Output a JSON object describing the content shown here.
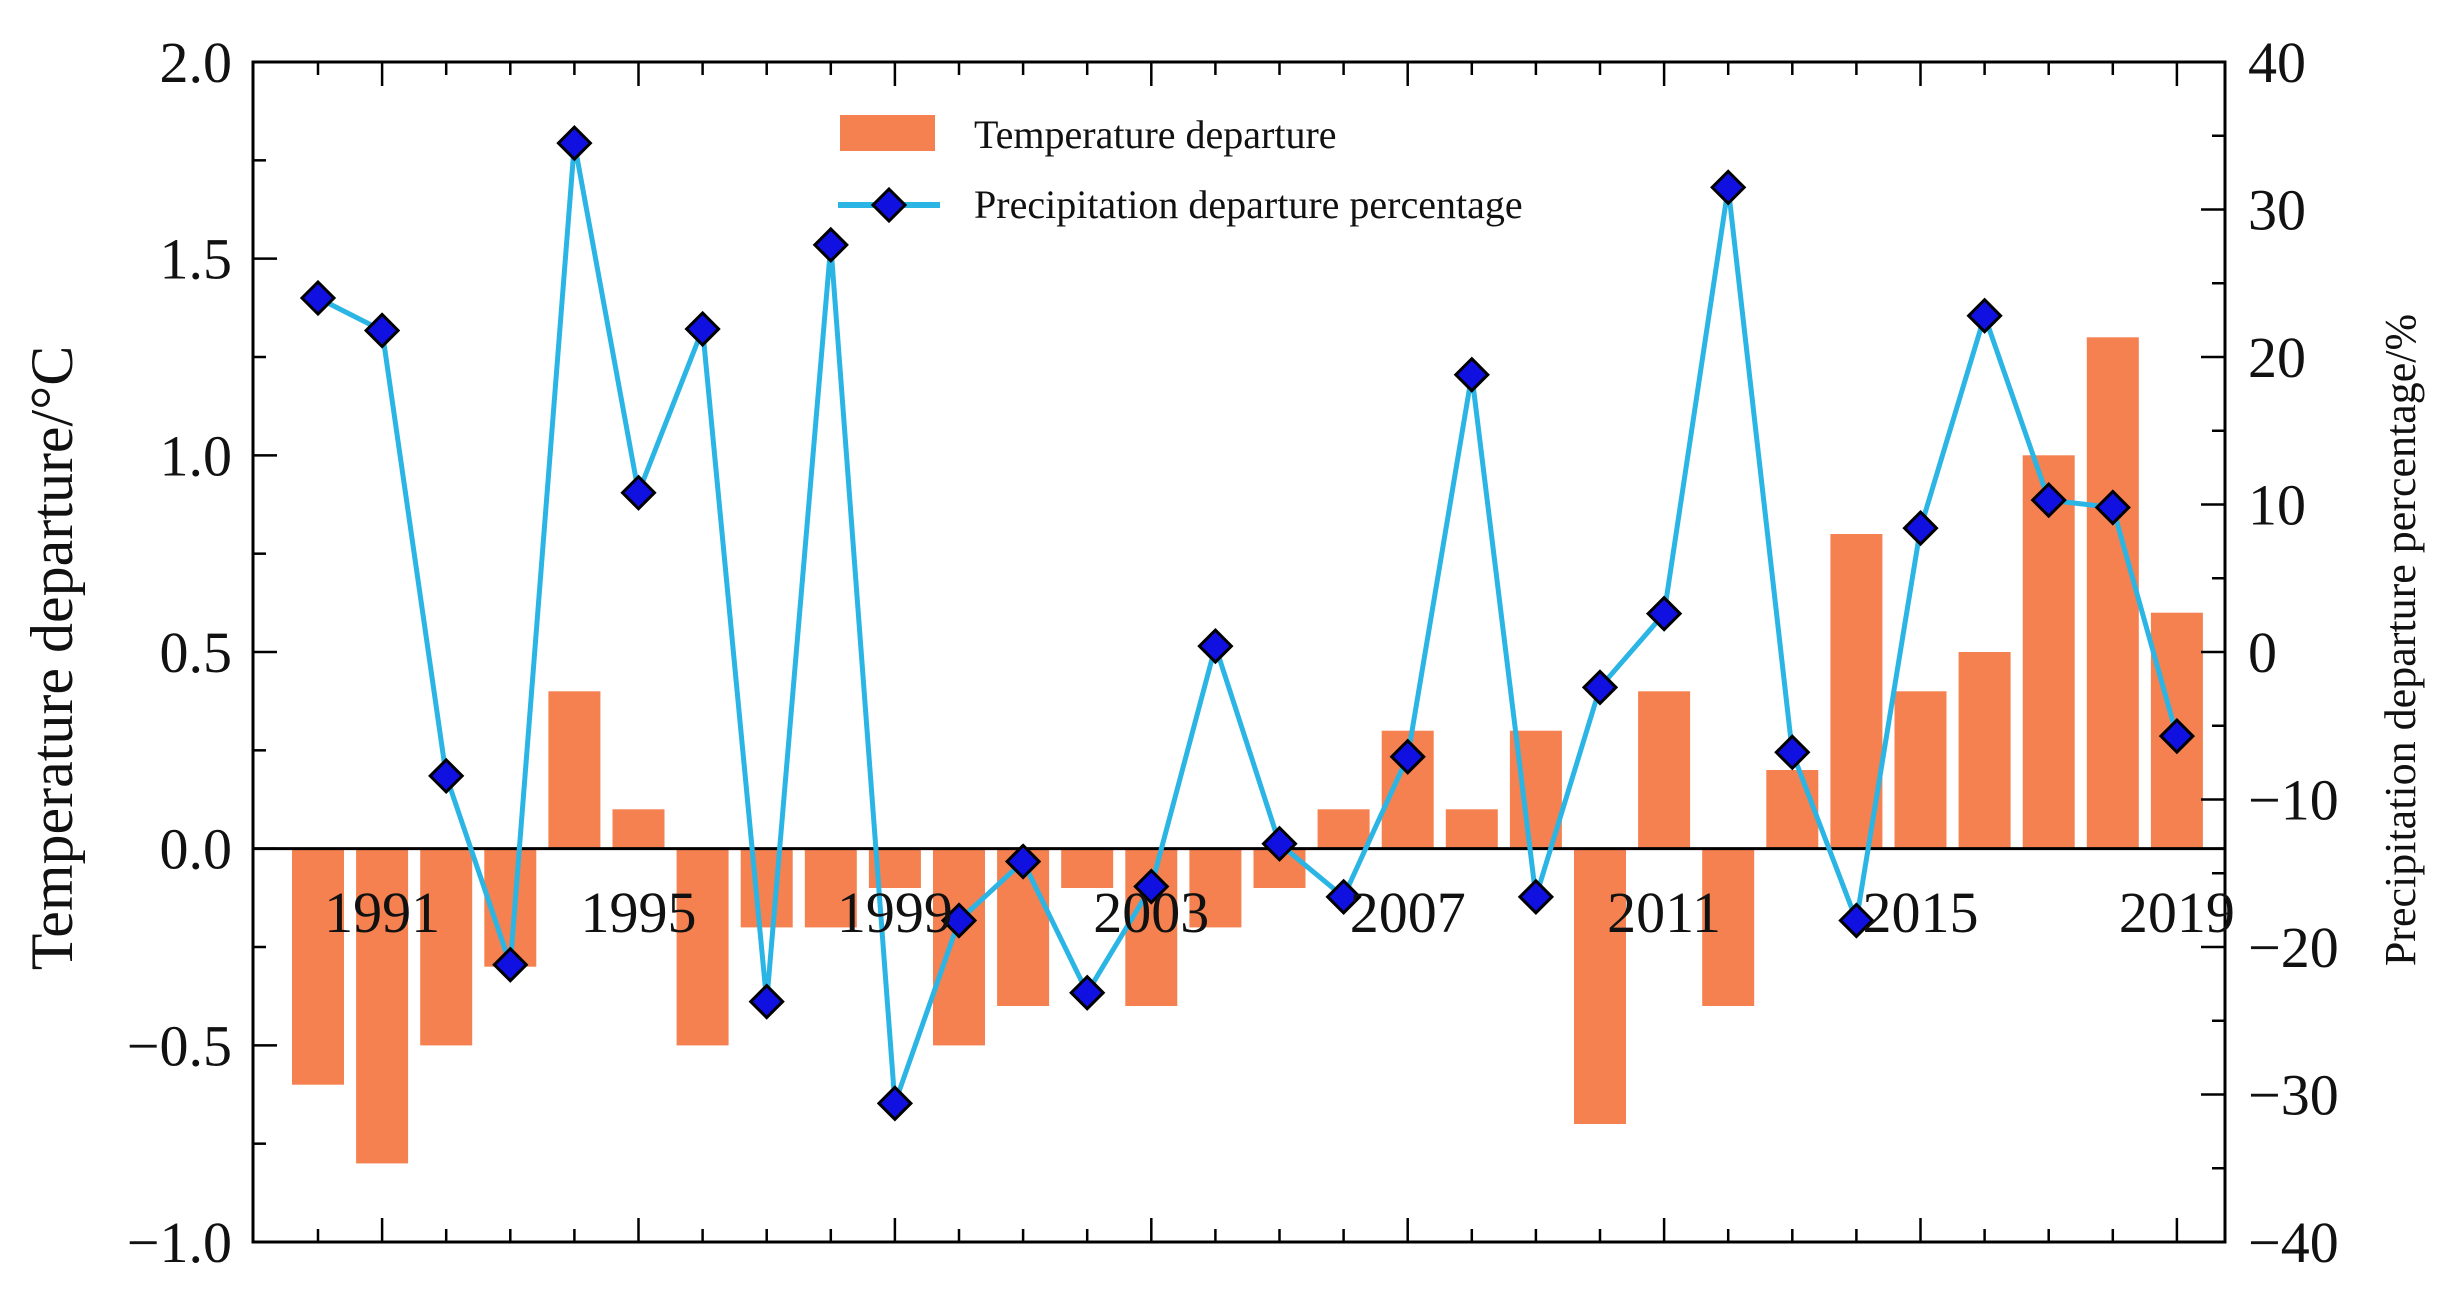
{
  "chart_data": {
    "type": "bar+line",
    "x": [
      1990,
      1991,
      1992,
      1993,
      1994,
      1995,
      1996,
      1997,
      1998,
      1999,
      2000,
      2001,
      2002,
      2003,
      2004,
      2005,
      2006,
      2007,
      2008,
      2009,
      2010,
      2011,
      2012,
      2013,
      2014,
      2015,
      2016,
      2017,
      2018,
      2019
    ],
    "x_tick_labels": [
      "1991",
      "1995",
      "1999",
      "2003",
      "2007",
      "2011",
      "2015",
      "2019"
    ],
    "series": [
      {
        "name": "Temperature departure",
        "kind": "bar",
        "axis": "left",
        "color": "#F4814F",
        "values": [
          -0.6,
          -0.8,
          -0.5,
          -0.3,
          0.4,
          0.1,
          -0.5,
          -0.2,
          -0.2,
          -0.1,
          -0.5,
          -0.4,
          -0.1,
          -0.4,
          -0.2,
          -0.1,
          0.1,
          0.3,
          0.1,
          0.3,
          -0.7,
          0.4,
          -0.4,
          0.2,
          0.8,
          0.4,
          0.5,
          1.0,
          1.3,
          0.6
        ]
      },
      {
        "name": "Precipitation departure percentage",
        "kind": "line",
        "axis": "right",
        "color": "#2BB5E5",
        "marker_color": "#1010E0",
        "values": [
          24,
          21.8,
          -8.4,
          -21.2,
          34.5,
          10.8,
          21.9,
          -23.7,
          27.6,
          -30.6,
          -18.2,
          -14.2,
          -23.1,
          -15.9,
          0.4,
          -13,
          -16.6,
          -7.1,
          18.8,
          -16.6,
          -2.4,
          2.6,
          31.5,
          -6.8,
          -18.2,
          8.4,
          22.8,
          10.3,
          9.8,
          -5.7
        ]
      }
    ],
    "ylabel_left": "Temperature departure/°C",
    "ylabel_right": "Precipitation departure percentage/%",
    "ylim_left": [
      -1.0,
      2.0
    ],
    "ylim_right": [
      -40,
      40
    ],
    "yticks_left": [
      "2.0",
      "1.5",
      "1.0",
      "0.5",
      "0.0",
      "−0.5",
      "−1.0"
    ],
    "yticks_right": [
      "40",
      "30",
      "20",
      "10",
      "0",
      "−10",
      "−20",
      "−30",
      "−40"
    ],
    "legend_position": "top-center",
    "grid": false
  }
}
